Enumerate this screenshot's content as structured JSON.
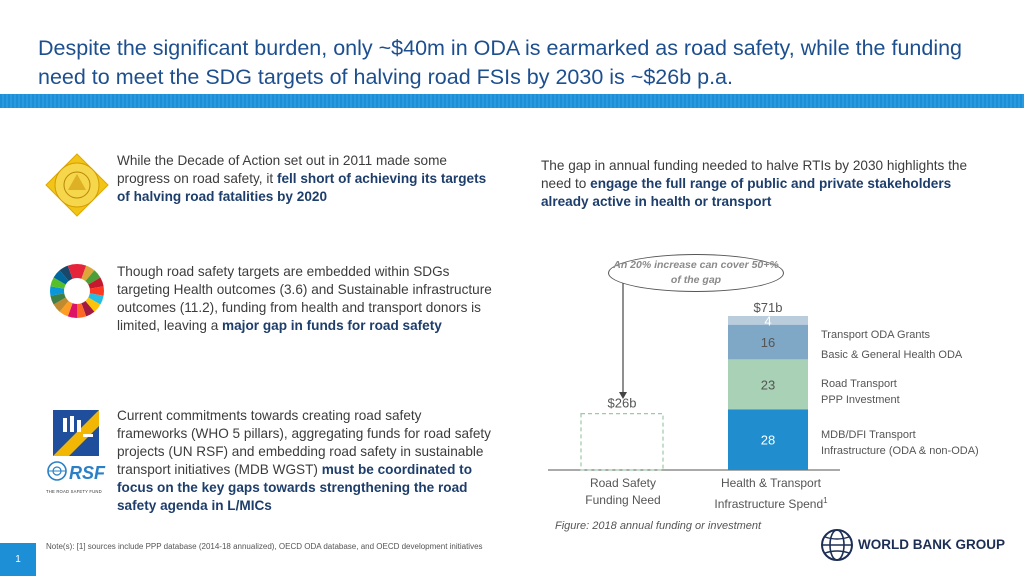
{
  "title": "Despite the significant burden, only ~$40m in ODA is earmarked as road safety, while the funding need to meet the SDG targets of halving road FSIs by 2030 is ~$26b p.a.",
  "left": {
    "items": [
      {
        "icon": "decade-of-action-badge-icon",
        "text_pre": "While the Decade of Action set out in 2011 made some progress on road safety, it ",
        "text_bold": "fell short of achieving its targets of halving road fatalities by 2020",
        "text_post": ""
      },
      {
        "icon": "sdg-wheel-icon",
        "text_pre": "Though road safety targets are embedded within SDGs targeting Health outcomes (3.6) and Sustainable infrastructure outcomes (11.2), funding from health and transport donors is limited, leaving a ",
        "text_bold": "major gap in funds for road safety",
        "text_post": ""
      },
      {
        "icon": "who-pillars-icon",
        "icon2": "un-rsf-logo-icon",
        "icon2_label": "THE ROAD SAFETY FUND",
        "text_pre": "Current commitments towards creating road safety frameworks (WHO 5 pillars), aggregating funds for road safety projects (UN RSF) and embedding road safety in sustainable transport initiatives (MDB WGST) ",
        "text_bold": "must be coordinated to focus on the key gaps towards strengthening the road safety agenda in L/MICs",
        "text_post": ""
      }
    ]
  },
  "right": {
    "intro_pre": "The gap in annual funding needed to halve RTIs by 2030 highlights the need to ",
    "intro_bold": "engage the full range of public and private stakeholders already active in health or transport",
    "callout": "An 20% increase can cover 50+% of the gap"
  },
  "chart_data": {
    "type": "bar",
    "categories": [
      "Road Safety Funding Need",
      "Health & Transport Infrastructure Spend"
    ],
    "category_labels": [
      [
        "Road Safety",
        "Funding Need"
      ],
      [
        "Health & Transport",
        "Infrastructure Spend",
        "1"
      ]
    ],
    "totals": [
      "$26b",
      "$71b"
    ],
    "need_value": 26,
    "stack": [
      {
        "name": "MDB/DFI Transport Infrastructure (ODA & non-ODA)",
        "value": 28,
        "label_lines": [
          "MDB/DFI Transport",
          "Infrastructure (ODA & non-ODA)"
        ],
        "color": "#1f8dce"
      },
      {
        "name": "Road Transport PPP Investment",
        "value": 23,
        "label_lines": [
          "Road Transport",
          "PPP Investment"
        ],
        "color": "#a8d1b5"
      },
      {
        "name": "Basic & General Health ODA",
        "value": 16,
        "label_lines": [
          "Basic & General Health ODA"
        ],
        "color": "#7fa8c6"
      },
      {
        "name": "Transport ODA Grants",
        "value": 4,
        "label_lines": [
          "Transport ODA Grants"
        ],
        "color": "#b9cddd"
      }
    ],
    "caption": "Figure: 2018 annual funding or investment"
  },
  "footer": {
    "note": "Note(s): [1] sources include PPP database (2014-18 annualized), OECD ODA database, and OECD development initiatives",
    "page": "1",
    "brand": "WORLD BANK GROUP"
  },
  "colors": {
    "title": "#1d4f8f",
    "accent": "#1c8fd6",
    "emphasis": "#1d3d6b"
  }
}
